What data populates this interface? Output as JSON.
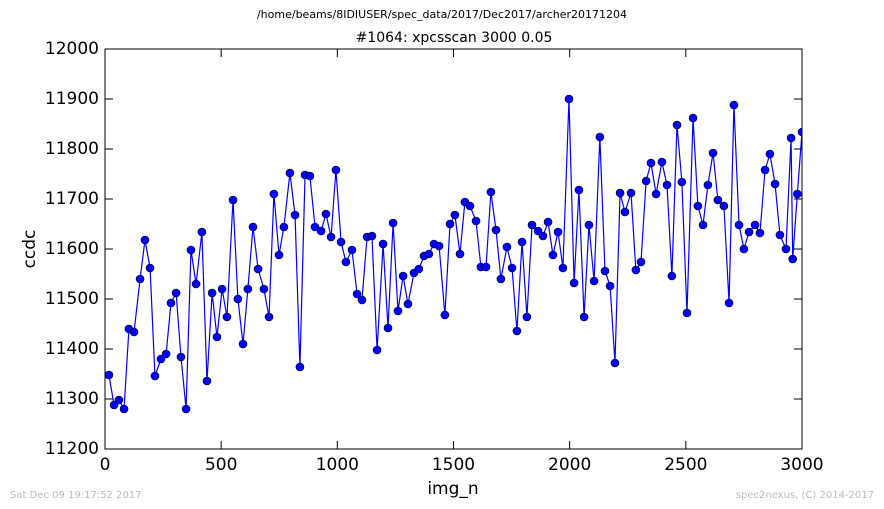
{
  "chart_data": {
    "type": "line",
    "title": "/home/beams/8IDIUSER/spec_data/2017/Dec2017/archer20171204",
    "subtitle": "#1064: xpcsscan 3000 0.05",
    "x_label": "img_n",
    "y_label": "ccdc",
    "footer_left": "Sat Dec 09 19:17:52 2017",
    "footer_right": "spec2nexus, (C) 2014-2017",
    "xlim": [
      0,
      3000
    ],
    "xticks": [
      0,
      500,
      1000,
      1500,
      2000,
      2500,
      3000
    ],
    "ylim": [
      11200,
      12000
    ],
    "yticks": [
      11200,
      11300,
      11400,
      11500,
      11600,
      11700,
      11800,
      11900,
      12000
    ],
    "x": [
      17,
      39,
      60,
      82,
      103,
      125,
      151,
      172,
      194,
      215,
      241,
      263,
      284,
      306,
      327,
      349,
      370,
      392,
      417,
      439,
      461,
      482,
      504,
      525,
      551,
      572,
      594,
      615,
      637,
      659,
      684,
      706,
      727,
      749,
      770,
      796,
      818,
      839,
      861,
      882,
      904,
      930,
      951,
      973,
      994,
      1016,
      1037,
      1063,
      1085,
      1106,
      1128,
      1149,
      1171,
      1197,
      1218,
      1240,
      1261,
      1283,
      1304,
      1330,
      1351,
      1373,
      1394,
      1416,
      1438,
      1463,
      1485,
      1506,
      1528,
      1549,
      1571,
      1597,
      1618,
      1640,
      1661,
      1683,
      1704,
      1730,
      1752,
      1773,
      1795,
      1816,
      1838,
      1864,
      1885,
      1907,
      1928,
      1950,
      1971,
      1997,
      2019,
      2040,
      2062,
      2083,
      2105,
      2130,
      2152,
      2174,
      2195,
      2217,
      2238,
      2264,
      2285,
      2307,
      2329,
      2350,
      2372,
      2397,
      2419,
      2440,
      2462,
      2483,
      2505,
      2531,
      2552,
      2574,
      2595,
      2617,
      2638,
      2664,
      2686,
      2707,
      2729,
      2750,
      2772,
      2798,
      2819,
      2841,
      2862,
      2884,
      2905,
      2931,
      2953,
      2960,
      2980,
      3000
    ],
    "series": [
      {
        "name": "ccdc",
        "color": "#0000ff",
        "values": [
          11348,
          11288,
          11298,
          11280,
          11440,
          11434,
          11540,
          11618,
          11562,
          11346,
          11380,
          11390,
          11492,
          11512,
          11384,
          11280,
          11598,
          11530,
          11634,
          11336,
          11512,
          11424,
          11520,
          11464,
          11698,
          11500,
          11410,
          11520,
          11644,
          11560,
          11520,
          11464,
          11710,
          11588,
          11644,
          11752,
          11668,
          11364,
          11748,
          11746,
          11644,
          11636,
          11670,
          11624,
          11758,
          11614,
          11574,
          11598,
          11510,
          11498,
          11624,
          11626,
          11398,
          11610,
          11442,
          11652,
          11476,
          11546,
          11490,
          11552,
          11560,
          11586,
          11590,
          11610,
          11606,
          11468,
          11650,
          11668,
          11590,
          11694,
          11686,
          11656,
          11564,
          11564,
          11714,
          11638,
          11540,
          11604,
          11562,
          11436,
          11614,
          11464,
          11648,
          11636,
          11626,
          11654,
          11588,
          11634,
          11562,
          11900,
          11532,
          11718,
          11464,
          11648,
          11536,
          11824,
          11556,
          11526,
          11372,
          11712,
          11674,
          11712,
          11558,
          11574,
          11736,
          11772,
          11710,
          11774,
          11728,
          11546,
          11848,
          11734,
          11472,
          11862,
          11686,
          11648,
          11728,
          11792,
          11698,
          11686,
          11492,
          11888,
          11648,
          11600,
          11634,
          11648,
          11632,
          11758,
          11790,
          11730,
          11628,
          11600,
          11822,
          11580,
          11710,
          11834
        ]
      }
    ]
  }
}
